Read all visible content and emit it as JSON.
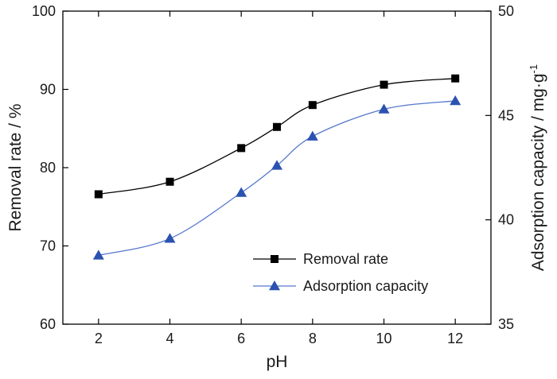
{
  "chart_data": {
    "type": "line",
    "x": [
      2,
      4,
      6,
      7,
      8,
      10,
      12
    ],
    "xticks": [
      "2",
      "4",
      "6",
      "8",
      "10",
      "12"
    ],
    "xlabel": "pH",
    "xlim": [
      1,
      13
    ],
    "left_axis": {
      "label": "Removal rate / %",
      "ylim": [
        60,
        100
      ],
      "ticks": [
        "60",
        "70",
        "80",
        "90",
        "100"
      ]
    },
    "right_axis": {
      "label_main": "Adsorption capacity / mg·g",
      "label_sup": "-1",
      "ylim": [
        35,
        50
      ],
      "ticks": [
        "35",
        "40",
        "45",
        "50"
      ]
    },
    "series": [
      {
        "name": "Removal rate",
        "axis": "left",
        "values": [
          76.6,
          78.2,
          82.5,
          85.2,
          88.0,
          90.6,
          91.4
        ],
        "marker": "square",
        "marker_color": "#000000",
        "line_color": "#000000"
      },
      {
        "name": "Adsorption capacity",
        "axis": "right",
        "values": [
          38.3,
          39.1,
          41.3,
          42.6,
          44.0,
          45.3,
          45.7
        ],
        "marker": "triangle",
        "marker_color": "#2b52b0",
        "line_color": "#5577cc"
      }
    ],
    "legend_position": "lower-right",
    "grid": false
  }
}
